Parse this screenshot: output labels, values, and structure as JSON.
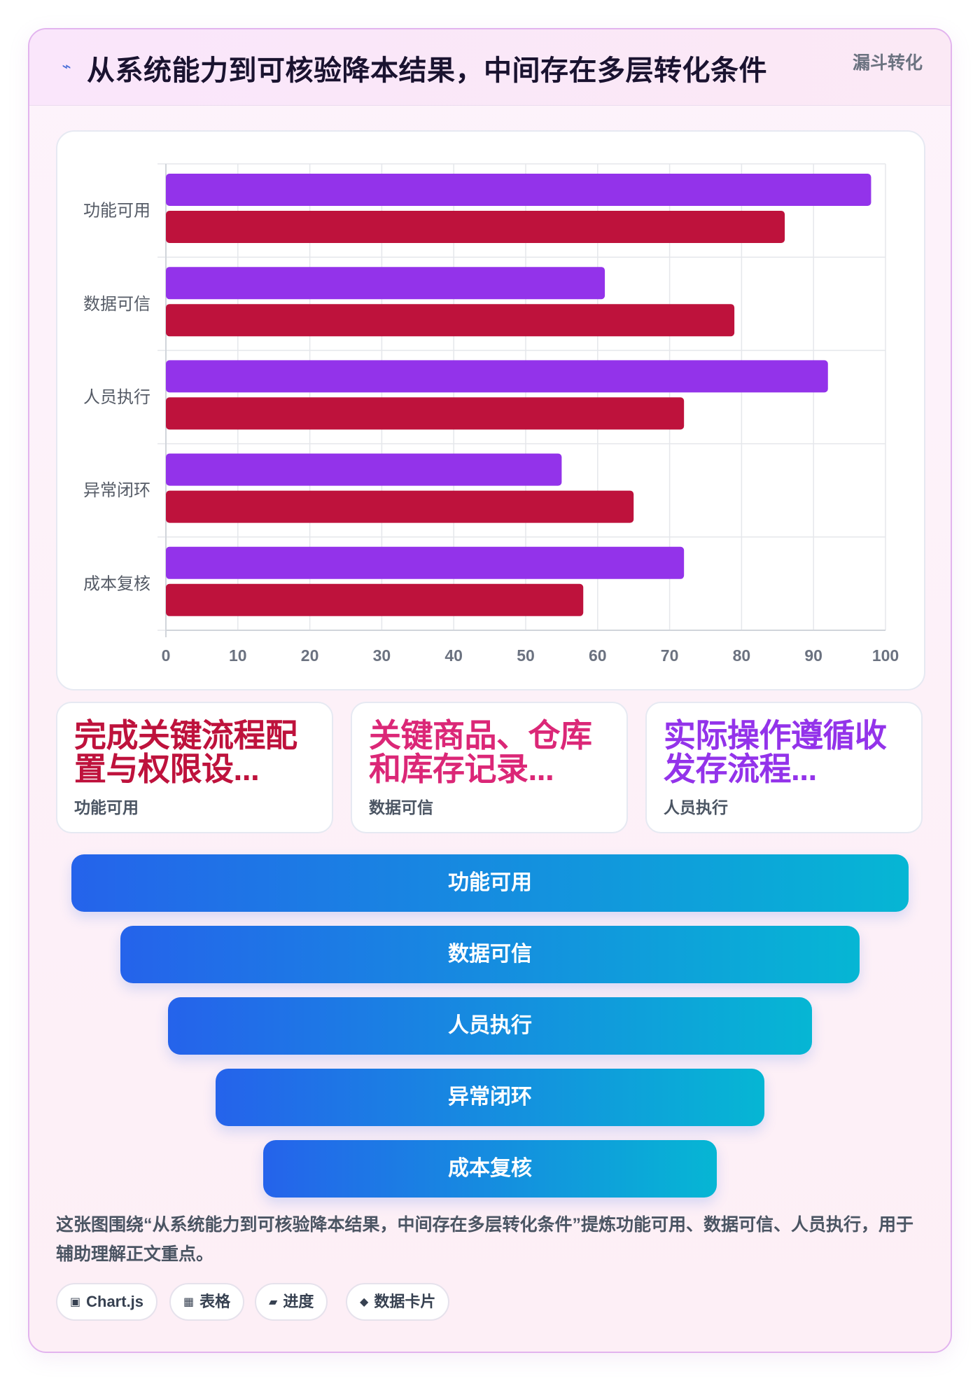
{
  "header": {
    "icon": "lightning-icon",
    "title": "从系统能力到可核验降本结果，中间存在多层转化条件",
    "tag": "漏斗转化"
  },
  "chart_data": {
    "type": "bar",
    "orientation": "horizontal",
    "categories": [
      "功能可用",
      "数据可信",
      "人员执行",
      "异常闭环",
      "成本复核"
    ],
    "series": [
      {
        "values": [
          98,
          61,
          92,
          55,
          72
        ],
        "color": "#9333ea"
      },
      {
        "values": [
          86,
          79,
          72,
          65,
          58
        ],
        "color": "#be123c"
      }
    ],
    "xlim": [
      0,
      100
    ],
    "xticks": [
      0,
      10,
      20,
      30,
      40,
      50,
      60,
      70,
      80,
      90,
      100
    ],
    "grid": true,
    "title": "",
    "xlabel": "",
    "ylabel": ""
  },
  "cards": [
    {
      "main": "完成关键流程配置与权限设...",
      "sub": "功能可用",
      "color": "#be123c"
    },
    {
      "main": "关键商品、仓库和库存记录...",
      "sub": "数据可信",
      "color": "#db2777"
    },
    {
      "main": "实际操作遵循收发存流程...",
      "sub": "人员执行",
      "color": "#9333ea"
    }
  ],
  "funnel": [
    "功能可用",
    "数据可信",
    "人员执行",
    "异常闭环",
    "成本复核"
  ],
  "description": "这张图围绕“从系统能力到可核验降本结果，中间存在多层转化条件”提炼功能可用、数据可信、人员执行，用于辅助理解正文重点。",
  "chips": [
    {
      "icon": "▣",
      "label": "Chart.js"
    },
    {
      "icon": "▦",
      "label": "表格"
    },
    {
      "icon": "▰",
      "label": "进度"
    },
    {
      "icon": "◆",
      "label": "数据卡片"
    }
  ]
}
